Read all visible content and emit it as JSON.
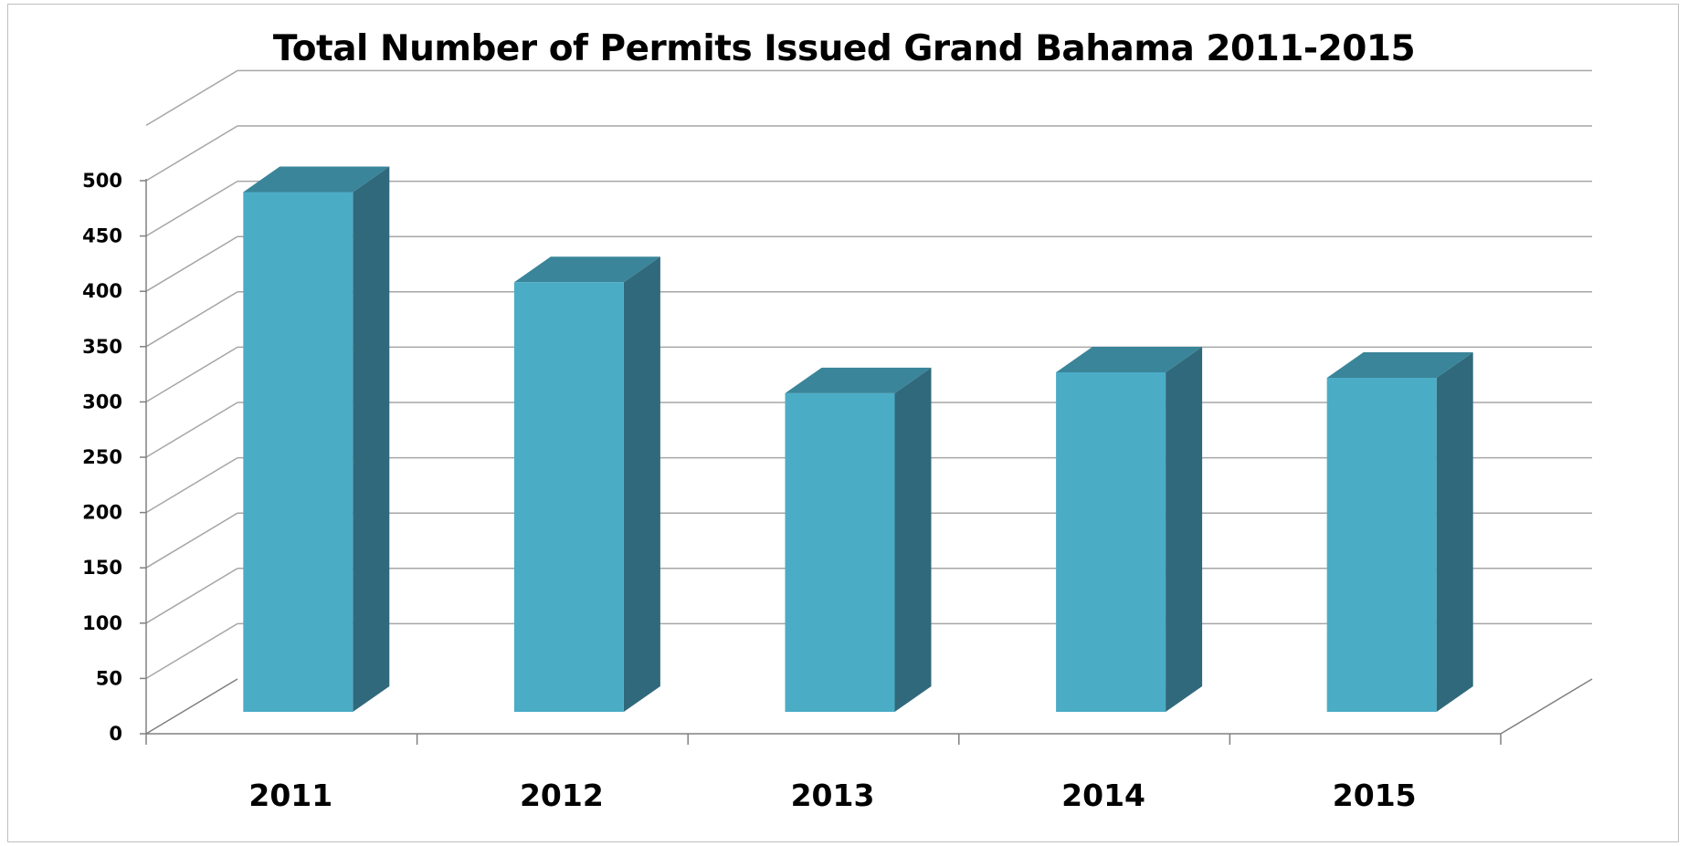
{
  "chart_data": {
    "type": "bar",
    "style": "3d-column",
    "title": "Total Number of Permits Issued Grand Bahama 2011-2015",
    "xlabel": "",
    "ylabel": "",
    "categories": [
      "2011",
      "2012",
      "2013",
      "2014",
      "2015"
    ],
    "values": [
      473,
      391,
      290,
      309,
      304
    ],
    "ylim": [
      0,
      500
    ],
    "ytick_step": 50,
    "yticks": [
      "0",
      "50",
      "100",
      "150",
      "200",
      "250",
      "300",
      "350",
      "400",
      "450",
      "500"
    ],
    "grid": true,
    "legend": "none",
    "colors": {
      "bar_front": "#4BACC6",
      "bar_side": "#31697C",
      "bar_top": "#3A8599",
      "gridline": "#A6A6A6",
      "axis": "#808080"
    }
  }
}
